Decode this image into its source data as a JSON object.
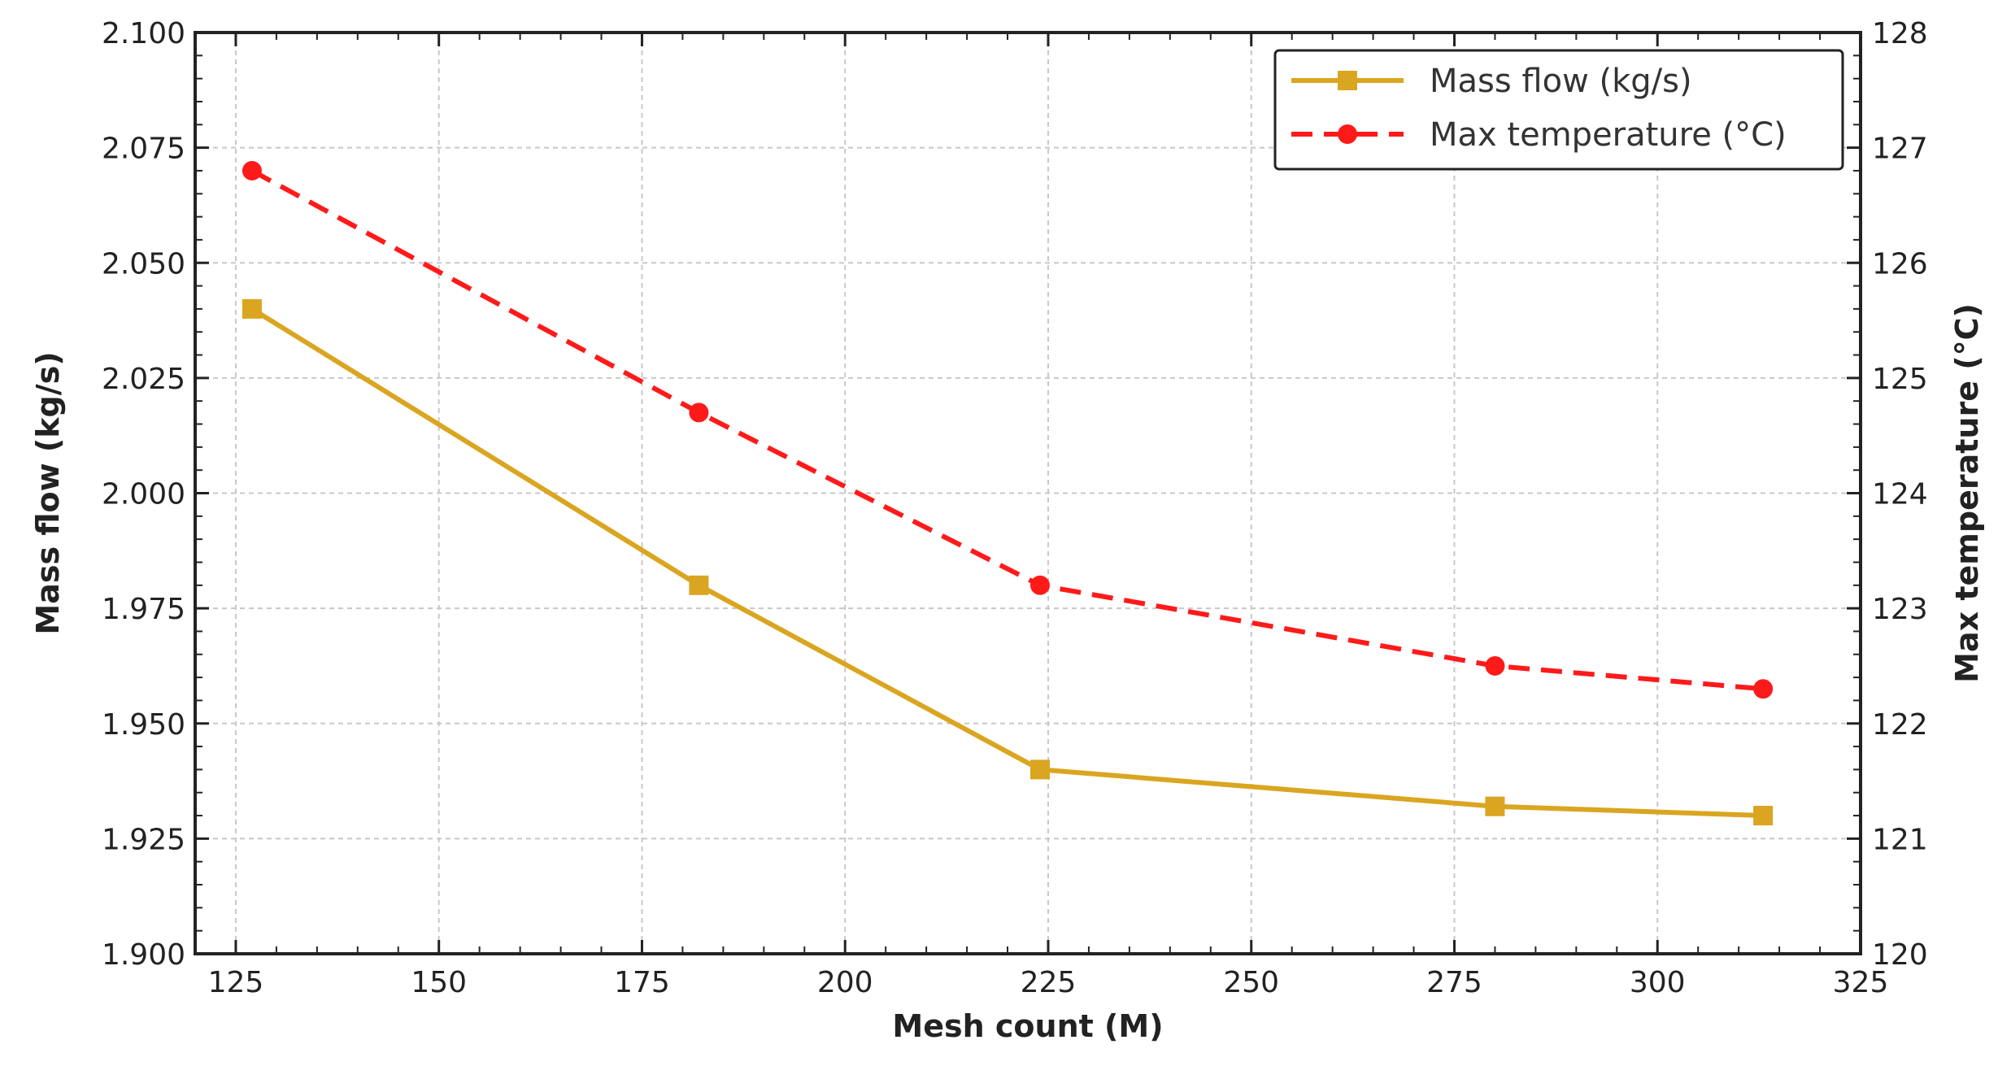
{
  "chart_data": {
    "type": "line",
    "x": [
      127,
      182,
      224,
      280,
      313
    ],
    "series": [
      {
        "name": "Mass flow (kg/s)",
        "axis": "left",
        "values": [
          2.04,
          1.98,
          1.94,
          1.932,
          1.93
        ],
        "color": "#DAA520",
        "line_style": "solid",
        "marker": "square"
      },
      {
        "name": "Max temperature (°C)",
        "axis": "right",
        "values": [
          126.8,
          124.7,
          123.2,
          122.5,
          122.3
        ],
        "color": "#FF1A1A",
        "line_style": "dashed",
        "marker": "circle"
      }
    ],
    "xlabel": "Mesh count (M)",
    "ylabel": "Mass flow (kg/s)",
    "y2label": "Max temperature (°C)",
    "xlim": [
      120,
      325
    ],
    "ylim": [
      1.9,
      2.1
    ],
    "y2lim": [
      120,
      128
    ],
    "xticks": [
      125,
      150,
      175,
      200,
      225,
      250,
      275,
      300,
      325
    ],
    "yticks": [
      1.9,
      1.925,
      1.95,
      1.975,
      2.0,
      2.025,
      2.05,
      2.075,
      2.1
    ],
    "y2ticks": [
      120,
      121,
      122,
      123,
      124,
      125,
      126,
      127,
      128
    ],
    "xtick_labels": [
      "125",
      "150",
      "175",
      "200",
      "225",
      "250",
      "275",
      "300",
      "325"
    ],
    "ytick_labels": [
      "1.900",
      "1.925",
      "1.950",
      "1.975",
      "2.000",
      "2.025",
      "2.050",
      "2.075",
      "2.100"
    ],
    "y2tick_labels": [
      "120",
      "121",
      "122",
      "123",
      "124",
      "125",
      "126",
      "127",
      "128"
    ],
    "grid": true,
    "legend_position": "top-right"
  }
}
